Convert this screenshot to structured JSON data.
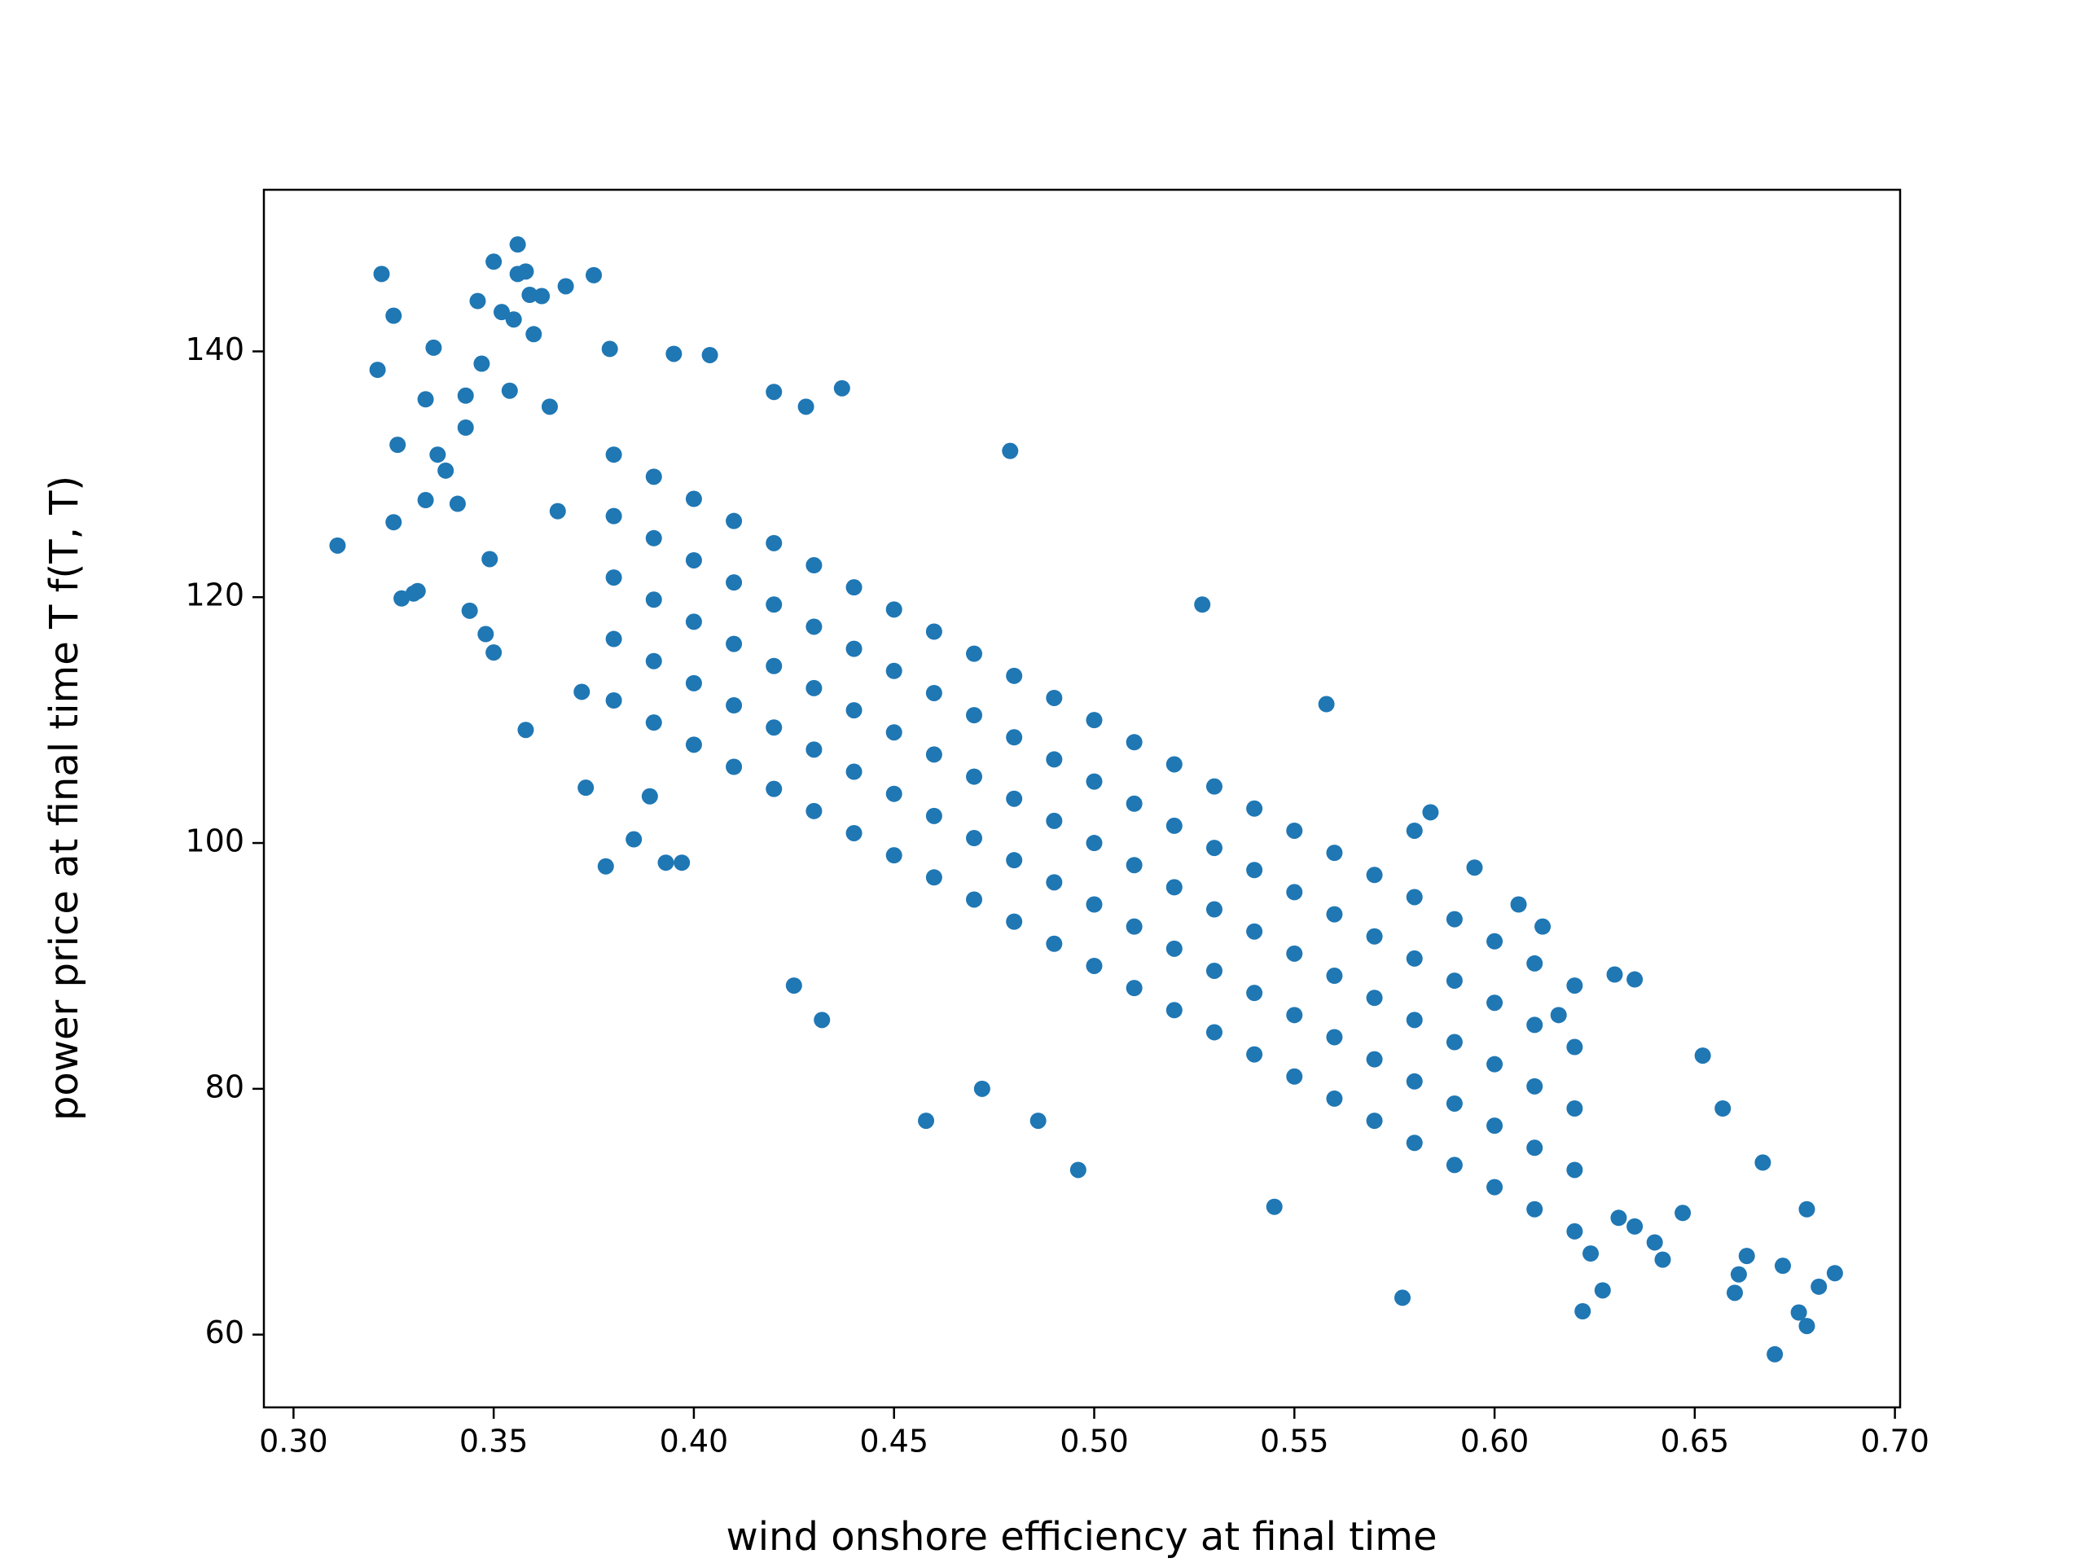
{
  "chart_data": {
    "type": "scatter",
    "xlabel": "wind onshore efficiency at final time",
    "ylabel": "power price at final time T f(T, T)",
    "color": "#1f77b4",
    "xlim": [
      0.2926,
      0.7013
    ],
    "ylim": [
      54.08,
      153.15
    ],
    "xticks": [
      {
        "value": 0.3,
        "label": "0.30"
      },
      0.35,
      {
        "value": 0.4,
        "label": "0.40"
      },
      0.45,
      {
        "value": 0.5,
        "label": "0.50"
      },
      0.55,
      {
        "value": 0.6,
        "label": "0.60"
      },
      0.65,
      {
        "value": 0.7,
        "label": "0.70"
      }
    ],
    "yticks": [
      60,
      80,
      100,
      120,
      140
    ],
    "grid": false,
    "x": [
      0.311,
      0.322,
      0.321,
      0.325,
      0.326,
      0.325,
      0.327,
      0.33,
      0.331,
      0.333,
      0.335,
      0.333,
      0.336,
      0.338,
      0.341,
      0.343,
      0.343,
      0.344,
      0.346,
      0.347,
      0.348,
      0.349,
      0.35,
      0.35,
      0.352,
      0.354,
      0.355,
      0.356,
      0.356,
      0.358,
      0.358,
      0.359,
      0.36,
      0.362,
      0.364,
      0.366,
      0.368,
      0.372,
      0.373,
      0.375,
      0.378,
      0.379,
      0.385,
      0.389,
      0.393,
      0.395,
      0.397,
      0.404,
      0.42,
      0.425,
      0.428,
      0.432,
      0.437,
      0.458,
      0.472,
      0.479,
      0.486,
      0.496,
      0.527,
      0.545,
      0.558,
      0.577,
      0.622,
      0.652,
      0.657,
      0.66,
      0.667,
      0.67,
      0.672,
      0.676,
      0.678,
      0.678,
      0.681,
      0.685,
      0.663,
      0.661,
      0.647,
      0.642,
      0.64,
      0.635,
      0.631,
      0.627,
      0.624,
      0.606,
      0.612,
      0.63,
      0.635,
      0.616,
      0.584,
      0.58,
      0.595,
      0.38,
      0.38,
      0.38,
      0.38,
      0.38,
      0.39,
      0.39,
      0.39,
      0.39,
      0.39,
      0.4,
      0.4,
      0.4,
      0.4,
      0.4,
      0.41,
      0.41,
      0.41,
      0.41,
      0.41,
      0.42,
      0.42,
      0.42,
      0.42,
      0.42,
      0.43,
      0.43,
      0.43,
      0.43,
      0.43,
      0.44,
      0.44,
      0.44,
      0.44,
      0.44,
      0.45,
      0.45,
      0.45,
      0.45,
      0.45,
      0.46,
      0.46,
      0.46,
      0.46,
      0.46,
      0.47,
      0.47,
      0.47,
      0.47,
      0.47,
      0.48,
      0.48,
      0.48,
      0.48,
      0.48,
      0.49,
      0.49,
      0.49,
      0.49,
      0.49,
      0.5,
      0.5,
      0.5,
      0.5,
      0.5,
      0.51,
      0.51,
      0.51,
      0.51,
      0.51,
      0.52,
      0.52,
      0.52,
      0.52,
      0.52,
      0.53,
      0.53,
      0.53,
      0.53,
      0.53,
      0.54,
      0.54,
      0.54,
      0.54,
      0.54,
      0.55,
      0.55,
      0.55,
      0.55,
      0.55,
      0.56,
      0.56,
      0.56,
      0.56,
      0.56,
      0.57,
      0.57,
      0.57,
      0.57,
      0.57,
      0.58,
      0.58,
      0.58,
      0.58,
      0.58,
      0.59,
      0.59,
      0.59,
      0.59,
      0.59,
      0.6,
      0.6,
      0.6,
      0.6,
      0.6,
      0.61,
      0.61,
      0.61,
      0.61,
      0.61,
      0.62,
      0.62,
      0.62,
      0.62,
      0.62
    ],
    "values": [
      124.2,
      146.3,
      138.5,
      142.9,
      132.4,
      126.1,
      119.9,
      120.3,
      120.5,
      136.1,
      140.3,
      127.9,
      131.6,
      130.3,
      127.6,
      136.4,
      133.8,
      118.9,
      144.1,
      139.0,
      117.0,
      123.1,
      147.3,
      115.5,
      143.2,
      136.8,
      142.6,
      148.7,
      146.3,
      146.5,
      109.2,
      144.6,
      141.4,
      144.5,
      135.5,
      127.0,
      145.3,
      112.3,
      104.5,
      146.2,
      98.1,
      140.2,
      100.3,
      103.8,
      98.4,
      139.8,
      98.4,
      139.7,
      136.7,
      88.4,
      135.5,
      85.6,
      137.0,
      77.4,
      80.0,
      131.9,
      77.4,
      73.4,
      119.4,
      70.4,
      111.3,
      63.0,
      61.9,
      82.7,
      78.4,
      63.4,
      74.0,
      58.4,
      65.6,
      61.8,
      60.7,
      70.2,
      63.9,
      65.0,
      66.4,
      64.9,
      69.9,
      66.1,
      67.5,
      68.8,
      69.5,
      63.6,
      66.6,
      95.0,
      93.2,
      89.3,
      88.9,
      86.0,
      102.5,
      101.0,
      98.0,
      111.6,
      116.6,
      121.6,
      126.6,
      131.6,
      109.8,
      114.8,
      119.8,
      124.8,
      129.8,
      108,
      113,
      118,
      123,
      128,
      106.2,
      111.2,
      116.2,
      121.2,
      126.2,
      104.4,
      109.4,
      114.4,
      119.4,
      124.4,
      102.6,
      107.6,
      112.6,
      117.6,
      122.6,
      100.8,
      105.8,
      110.8,
      115.8,
      120.8,
      99,
      104,
      109,
      114,
      119,
      97.2,
      102.2,
      107.2,
      112.2,
      117.2,
      95.4,
      100.4,
      105.4,
      110.4,
      115.4,
      93.6,
      98.6,
      103.6,
      108.6,
      113.6,
      91.8,
      96.8,
      101.8,
      106.8,
      111.8,
      90,
      95,
      100,
      105,
      110,
      88.2,
      93.2,
      98.2,
      103.2,
      108.2,
      86.4,
      91.4,
      96.4,
      101.4,
      106.4,
      84.6,
      89.6,
      94.6,
      99.6,
      104.6,
      82.8,
      87.8,
      92.8,
      97.8,
      102.8,
      81,
      86,
      91,
      96,
      101,
      79.2,
      84.2,
      89.2,
      94.2,
      99.2,
      77.4,
      82.4,
      87.4,
      92.4,
      97.4,
      75.6,
      80.6,
      85.6,
      90.6,
      95.6,
      73.8,
      78.8,
      83.8,
      88.8,
      93.8,
      72,
      77,
      82,
      87,
      92,
      70.2,
      75.2,
      80.2,
      85.2,
      90.2,
      68.4,
      73.4,
      78.4,
      83.4,
      88.4
    ]
  }
}
